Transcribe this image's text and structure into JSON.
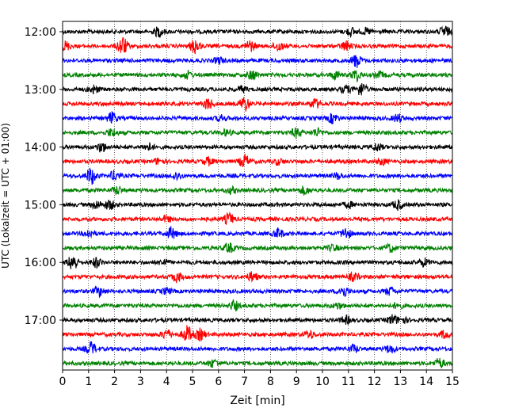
{
  "chart_data": {
    "type": "line",
    "title": "",
    "xlabel": "Zeit  [min]",
    "ylabel": "UTC (Lokalzeit = UTC + 01:00)",
    "xlim": [
      0,
      15
    ],
    "x_ticks": [
      "0",
      "1",
      "2",
      "3",
      "4",
      "5",
      "6",
      "7",
      "8",
      "9",
      "10",
      "11",
      "12",
      "13",
      "14",
      "15"
    ],
    "y_ticks": [
      "12:00",
      "13:00",
      "14:00",
      "15:00",
      "16:00",
      "17:00"
    ],
    "grid": "vertical dotted at each minute",
    "trace_interval_minutes": 15,
    "color_cycle": [
      "#000000",
      "#ff0000",
      "#0000ff",
      "#008000"
    ],
    "traces": [
      {
        "start": "12:00",
        "bursts": [
          [
            3.7,
            0.5
          ],
          [
            11.1,
            0.4
          ],
          [
            11.7,
            0.3
          ],
          [
            14.7,
            0.6
          ]
        ]
      },
      {
        "start": "12:15",
        "bursts": [
          [
            0.1,
            0.5
          ],
          [
            2.3,
            1.0
          ],
          [
            5.1,
            0.8
          ],
          [
            7.2,
            0.6
          ],
          [
            8.3,
            0.5
          ],
          [
            10.9,
            0.5
          ]
        ]
      },
      {
        "start": "12:30",
        "bursts": [
          [
            11.3,
            0.7
          ],
          [
            6.0,
            0.3
          ]
        ]
      },
      {
        "start": "12:45",
        "bursts": [
          [
            4.8,
            0.4
          ],
          [
            7.3,
            0.5
          ],
          [
            10.5,
            0.4
          ],
          [
            11.3,
            0.6
          ],
          [
            12.2,
            0.3
          ]
        ]
      },
      {
        "start": "13:00",
        "bursts": [
          [
            1.2,
            0.4
          ],
          [
            6.9,
            0.3
          ],
          [
            10.9,
            0.4
          ],
          [
            11.5,
            0.7
          ]
        ]
      },
      {
        "start": "13:15",
        "bursts": [
          [
            5.6,
            0.6
          ],
          [
            7.0,
            0.8
          ],
          [
            9.7,
            0.5
          ]
        ]
      },
      {
        "start": "13:30",
        "bursts": [
          [
            1.9,
            0.6
          ],
          [
            6.1,
            0.3
          ],
          [
            10.4,
            0.5
          ],
          [
            12.9,
            0.4
          ]
        ]
      },
      {
        "start": "13:45",
        "bursts": [
          [
            1.9,
            0.4
          ],
          [
            6.3,
            0.3
          ],
          [
            9.0,
            0.5
          ],
          [
            9.8,
            0.4
          ]
        ]
      },
      {
        "start": "14:00",
        "bursts": [
          [
            1.5,
            0.5
          ],
          [
            3.3,
            0.4
          ],
          [
            12.1,
            0.4
          ]
        ]
      },
      {
        "start": "14:15",
        "bursts": [
          [
            3.7,
            0.3
          ],
          [
            5.6,
            0.4
          ],
          [
            7.0,
            0.7
          ],
          [
            8.3,
            0.3
          ],
          [
            12.3,
            0.3
          ]
        ]
      },
      {
        "start": "14:30",
        "bursts": [
          [
            1.1,
            0.9
          ],
          [
            2.0,
            0.5
          ],
          [
            4.4,
            0.4
          ],
          [
            10.6,
            0.3
          ]
        ]
      },
      {
        "start": "14:45",
        "bursts": [
          [
            2.1,
            0.4
          ],
          [
            9.3,
            0.4
          ],
          [
            6.5,
            0.3
          ]
        ]
      },
      {
        "start": "15:00",
        "bursts": [
          [
            1.3,
            0.4
          ],
          [
            1.8,
            0.5
          ],
          [
            11.0,
            0.3
          ],
          [
            12.9,
            0.5
          ]
        ]
      },
      {
        "start": "15:15",
        "bursts": [
          [
            6.4,
            0.6
          ],
          [
            4.0,
            0.3
          ]
        ]
      },
      {
        "start": "15:30",
        "bursts": [
          [
            1.0,
            0.4
          ],
          [
            4.2,
            0.6
          ],
          [
            8.3,
            0.5
          ],
          [
            10.9,
            0.6
          ]
        ]
      },
      {
        "start": "15:45",
        "bursts": [
          [
            6.4,
            0.5
          ],
          [
            12.6,
            0.4
          ],
          [
            10.4,
            0.3
          ]
        ]
      },
      {
        "start": "16:00",
        "bursts": [
          [
            0.4,
            0.9
          ],
          [
            1.3,
            0.5
          ],
          [
            3.9,
            0.3
          ],
          [
            13.9,
            0.4
          ]
        ]
      },
      {
        "start": "16:15",
        "bursts": [
          [
            4.4,
            0.5
          ],
          [
            7.3,
            0.5
          ],
          [
            11.2,
            0.4
          ]
        ]
      },
      {
        "start": "16:30",
        "bursts": [
          [
            1.4,
            0.5
          ],
          [
            4.0,
            0.3
          ],
          [
            10.8,
            0.6
          ],
          [
            12.6,
            0.4
          ]
        ]
      },
      {
        "start": "16:45",
        "bursts": [
          [
            6.6,
            0.5
          ],
          [
            10.6,
            0.3
          ],
          [
            12.9,
            0.3
          ]
        ]
      },
      {
        "start": "17:00",
        "bursts": [
          [
            10.9,
            0.4
          ],
          [
            12.7,
            0.5
          ],
          [
            13.1,
            0.3
          ]
        ]
      },
      {
        "start": "17:15",
        "bursts": [
          [
            4.0,
            0.5
          ],
          [
            4.8,
            0.9
          ],
          [
            5.3,
            0.6
          ],
          [
            9.5,
            0.4
          ],
          [
            14.7,
            0.4
          ]
        ]
      },
      {
        "start": "17:30",
        "bursts": [
          [
            1.1,
            0.7
          ],
          [
            11.2,
            0.4
          ],
          [
            12.6,
            0.4
          ]
        ]
      },
      {
        "start": "17:45",
        "bursts": [
          [
            5.8,
            0.4
          ],
          [
            14.5,
            0.5
          ]
        ]
      }
    ]
  }
}
